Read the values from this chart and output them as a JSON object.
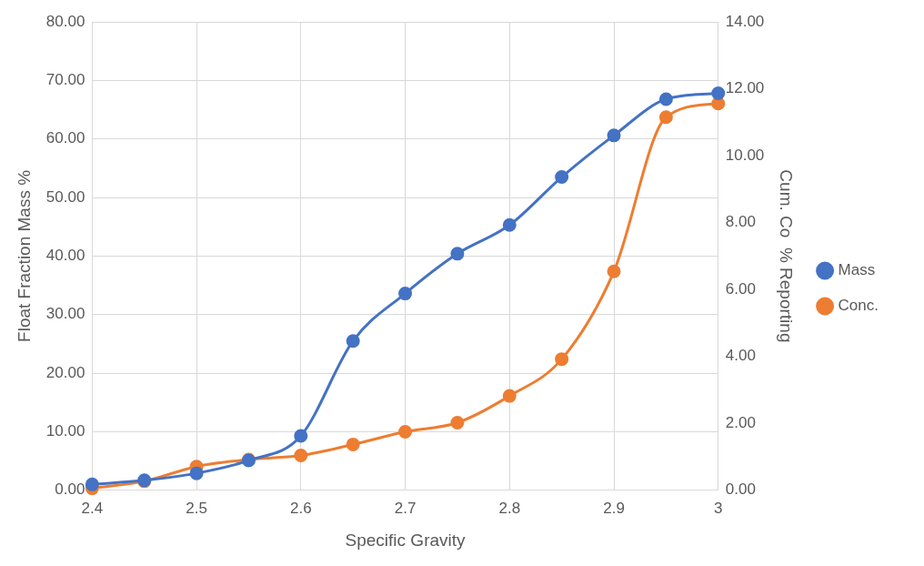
{
  "chart_data": {
    "type": "line",
    "xlabel": "Specific Gravity",
    "ylabel": "Float Fraction Mass %",
    "y2label": "Cum. Co  % Reporting",
    "x": [
      2.4,
      2.45,
      2.5,
      2.55,
      2.6,
      2.65,
      2.7,
      2.75,
      2.8,
      2.85,
      2.9,
      2.95,
      3
    ],
    "series": [
      {
        "name": "Mass",
        "color": "#4472c4",
        "values": [
          1.0,
          1.7,
          2.9,
          5.1,
          9.3,
          25.5,
          33.6,
          40.4,
          45.3,
          53.5,
          60.6,
          66.8,
          67.8
        ]
      },
      {
        "name": "Conc.",
        "color": "#ed7d31",
        "axis": "y2",
        "values": [
          0.06,
          0.27,
          0.71,
          0.92,
          1.04,
          1.37,
          1.75,
          2.02,
          2.82,
          3.92,
          6.54,
          11.15,
          11.56
        ]
      }
    ],
    "xlim": [
      2.4,
      3
    ],
    "xticks": [
      2.4,
      2.5,
      2.6,
      2.7,
      2.8,
      2.9,
      {
        "value": 3,
        "label": "3"
      }
    ],
    "ylim": [
      0,
      80
    ],
    "yticks": [
      {
        "value": 0,
        "label": "0.00"
      },
      {
        "value": 10,
        "label": "10.00"
      },
      {
        "value": 20,
        "label": "20.00"
      },
      {
        "value": 30,
        "label": "30.00"
      },
      {
        "value": 40,
        "label": "40.00"
      },
      {
        "value": 50,
        "label": "50.00"
      },
      {
        "value": 60,
        "label": "60.00"
      },
      {
        "value": 70,
        "label": "70.00"
      },
      {
        "value": 80,
        "label": "80.00"
      }
    ],
    "y2lim": [
      0,
      14
    ],
    "y2ticks": [
      {
        "value": 0,
        "label": "0.00"
      },
      {
        "value": 2,
        "label": "2.00"
      },
      {
        "value": 4,
        "label": "4.00"
      },
      {
        "value": 6,
        "label": "6.00"
      },
      {
        "value": 8,
        "label": "8.00"
      },
      {
        "value": 10,
        "label": "10.00"
      },
      {
        "value": 12,
        "label": "12.00"
      },
      {
        "value": 14,
        "label": "14.00"
      }
    ],
    "grid": true,
    "legend": "right",
    "marker": "circle",
    "line_style": "solid"
  }
}
